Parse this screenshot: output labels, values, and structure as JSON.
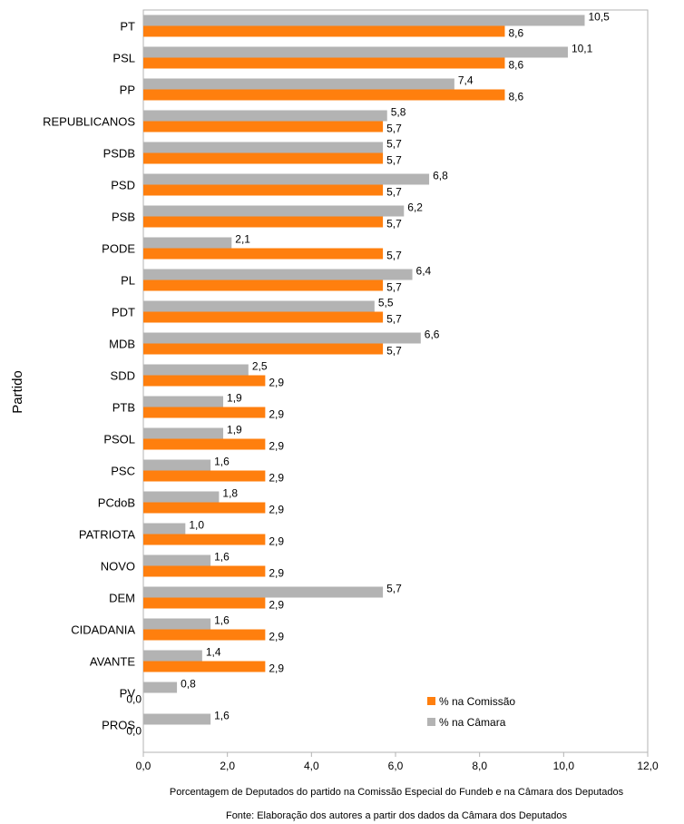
{
  "chart_data": {
    "type": "bar",
    "orientation": "horizontal",
    "categories": [
      "PT",
      "PSL",
      "PP",
      "REPUBLICANOS",
      "PSDB",
      "PSD",
      "PSB",
      "PODE",
      "PL",
      "PDT",
      "MDB",
      "SDD",
      "PTB",
      "PSOL",
      "PSC",
      "PCdoB",
      "PATRIOTA",
      "NOVO",
      "DEM",
      "CIDADANIA",
      "AVANTE",
      "PV",
      "PROS"
    ],
    "series": [
      {
        "name": "% na Câmara",
        "color": "#b3b3b3",
        "values": [
          10.5,
          10.1,
          7.4,
          5.8,
          5.7,
          6.8,
          6.2,
          2.1,
          6.4,
          5.5,
          6.6,
          2.5,
          1.9,
          1.9,
          1.6,
          1.8,
          1.0,
          1.6,
          5.7,
          1.6,
          1.4,
          0.8,
          1.6
        ],
        "labels": [
          "10,5",
          "10,1",
          "7,4",
          "5,8",
          "5,7",
          "6,8",
          "6,2",
          "2,1",
          "6,4",
          "5,5",
          "6,6",
          "2,5",
          "1,9",
          "1,9",
          "1,6",
          "1,8",
          "1,0",
          "1,6",
          "5,7",
          "1,6",
          "1,4",
          "0,8",
          "1,6"
        ]
      },
      {
        "name": "% na Comissão",
        "color": "#ff7f0e",
        "values": [
          8.6,
          8.6,
          8.6,
          5.7,
          5.7,
          5.7,
          5.7,
          5.7,
          5.7,
          5.7,
          5.7,
          2.9,
          2.9,
          2.9,
          2.9,
          2.9,
          2.9,
          2.9,
          2.9,
          2.9,
          2.9,
          0.0,
          0.0
        ],
        "labels": [
          "8,6",
          "8,6",
          "8,6",
          "5,7",
          "5,7",
          "5,7",
          "5,7",
          "5,7",
          "5,7",
          "5,7",
          "5,7",
          "2,9",
          "2,9",
          "2,9",
          "2,9",
          "2,9",
          "2,9",
          "2,9",
          "2,9",
          "2,9",
          "2,9",
          "0,0",
          "0,0"
        ]
      }
    ],
    "xlim": [
      0,
      12
    ],
    "xticks": [
      0,
      2,
      4,
      6,
      8,
      10,
      12
    ],
    "xtick_labels": [
      "0,0",
      "2,0",
      "4,0",
      "6,0",
      "8,0",
      "10,0",
      "12,0"
    ],
    "ylabel": "Partido",
    "xlabel": "Porcentagem de Deputados do partido na Comissão Especial do Fundeb e na Câmara dos Deputados",
    "source_note": "Fonte: Elaboração dos autores a partir dos dados da Câmara dos Deputados",
    "legend": {
      "placement": "bottom-right",
      "entries": [
        {
          "label": "% na Comissão",
          "color": "#ff7f0e"
        },
        {
          "label": "% na Câmara",
          "color": "#b3b3b3"
        }
      ]
    },
    "grid": false
  }
}
